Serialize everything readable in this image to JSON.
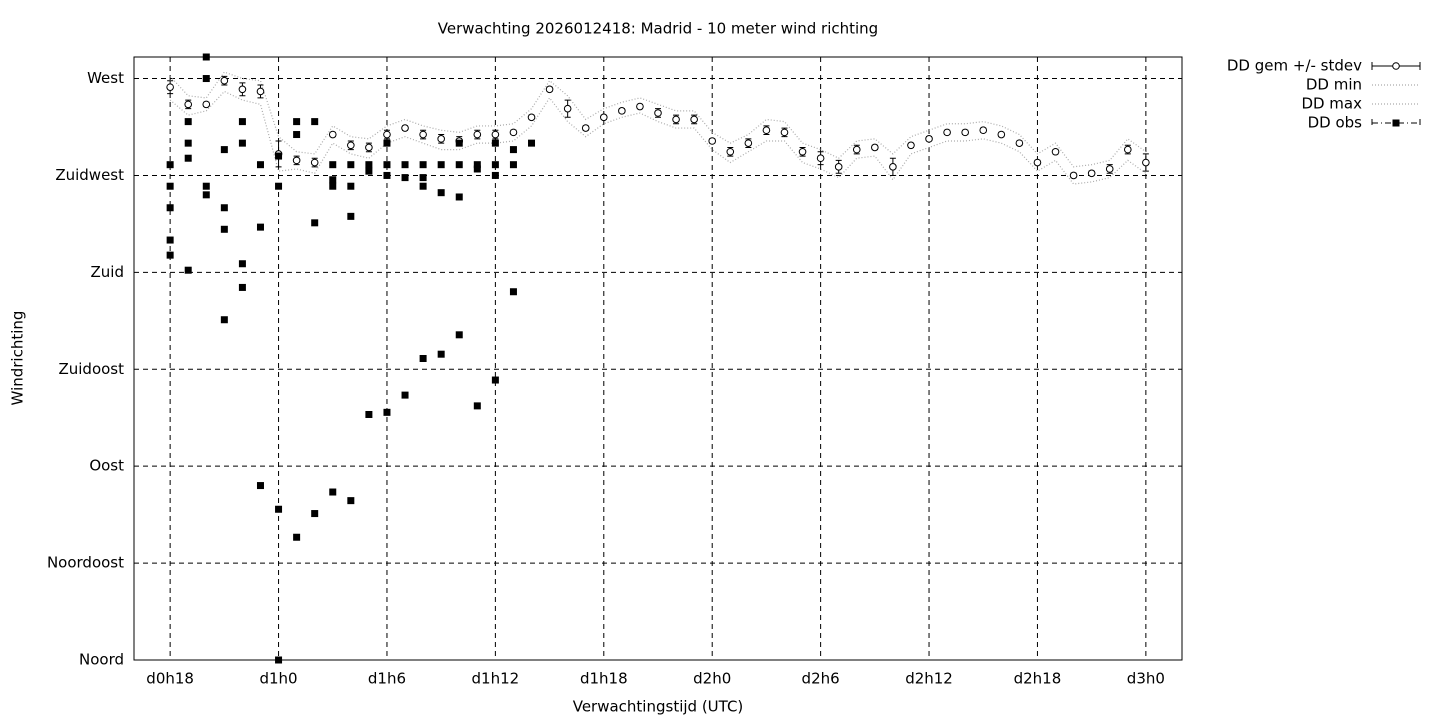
{
  "chart_data": {
    "type": "line",
    "title": "Verwachting 2026012418: Madrid - 10 meter wind richting",
    "xlabel": "Verwachtingstijd (UTC)",
    "ylabel": "Windrichting",
    "xlim": [
      16,
      74
    ],
    "xticks": [
      {
        "value": 18,
        "label": "d0h18"
      },
      {
        "value": 24,
        "label": "d1h0"
      },
      {
        "value": 30,
        "label": "d1h6"
      },
      {
        "value": 36,
        "label": "d1h12"
      },
      {
        "value": 42,
        "label": "d1h18"
      },
      {
        "value": 48,
        "label": "d2h0"
      },
      {
        "value": 54,
        "label": "d2h6"
      },
      {
        "value": 60,
        "label": "d2h12"
      },
      {
        "value": 66,
        "label": "d2h18"
      },
      {
        "value": 72,
        "label": "d3h0"
      }
    ],
    "ylim": [
      0,
      280
    ],
    "yticks": [
      {
        "value": 0,
        "label": "Noord"
      },
      {
        "value": 45,
        "label": "Noordoost"
      },
      {
        "value": 90,
        "label": "Oost"
      },
      {
        "value": 135,
        "label": "Zuidoost"
      },
      {
        "value": 180,
        "label": "Zuid"
      },
      {
        "value": 225,
        "label": "Zuidwest"
      },
      {
        "value": 270,
        "label": "West"
      }
    ],
    "grid": true,
    "legend": "outside-top-right",
    "x": [
      18,
      19,
      20,
      21,
      22,
      23,
      24,
      25,
      26,
      27,
      28,
      29,
      30,
      31,
      32,
      33,
      34,
      35,
      36,
      37,
      38,
      39,
      40,
      41,
      42,
      43,
      44,
      45,
      46,
      47,
      48,
      49,
      50,
      51,
      52,
      53,
      54,
      55,
      56,
      57,
      58,
      59,
      60,
      61,
      62,
      63,
      64,
      65,
      66,
      67,
      68,
      69,
      70,
      71,
      72
    ],
    "series": [
      {
        "name": "DD gem +/- stdev",
        "color": "#000000",
        "values": [
          266,
          258,
          258,
          269,
          265,
          264,
          235,
          232,
          231,
          244,
          239,
          238,
          244,
          247,
          244,
          242,
          241,
          244,
          244,
          245,
          252,
          265,
          256,
          247,
          252,
          255,
          257,
          254,
          251,
          251,
          241,
          236,
          240,
          246,
          245,
          236,
          233,
          229,
          237,
          238,
          229,
          239,
          242,
          245,
          245,
          246,
          244,
          240,
          231,
          236,
          225,
          226,
          228,
          237,
          231
        ],
        "errors": [
          3,
          2,
          1,
          2,
          3,
          3,
          6,
          2,
          2,
          1,
          2,
          2,
          2,
          1,
          2,
          2,
          2,
          2,
          2,
          1,
          1,
          1,
          4,
          1,
          1,
          1,
          1,
          2,
          2,
          2,
          1,
          2,
          2,
          2,
          2,
          2,
          3,
          3,
          2,
          1,
          4,
          1,
          1,
          1,
          1,
          1,
          1,
          1,
          1,
          1,
          1,
          1,
          2,
          2,
          4
        ]
      },
      {
        "name": "DD min",
        "color": "#aaaaaa",
        "values": [
          260,
          253,
          255,
          264,
          260,
          258,
          227,
          228,
          226,
          240,
          235,
          233,
          240,
          243,
          240,
          237,
          237,
          240,
          240,
          241,
          248,
          261,
          250,
          243,
          249,
          252,
          254,
          250,
          247,
          247,
          237,
          231,
          236,
          241,
          241,
          231,
          228,
          224,
          233,
          234,
          223,
          235,
          238,
          241,
          241,
          242,
          240,
          236,
          227,
          232,
          221,
          222,
          224,
          232,
          226
        ]
      },
      {
        "name": "DD max",
        "color": "#aaaaaa",
        "values": [
          271,
          262,
          261,
          273,
          270,
          269,
          243,
          236,
          235,
          248,
          243,
          242,
          248,
          251,
          248,
          246,
          245,
          248,
          248,
          249,
          256,
          269,
          262,
          251,
          256,
          259,
          261,
          258,
          255,
          255,
          245,
          240,
          244,
          251,
          250,
          240,
          237,
          233,
          241,
          242,
          235,
          243,
          246,
          249,
          249,
          250,
          248,
          244,
          235,
          240,
          229,
          230,
          232,
          242,
          236
        ]
      },
      {
        "name": "DD obs",
        "color": "#000000",
        "x": [
          18,
          18,
          18,
          18,
          18,
          19,
          19,
          19,
          19,
          20,
          20,
          20,
          20,
          21,
          21,
          21,
          21,
          22,
          22,
          22,
          22,
          23,
          23,
          23,
          24,
          24,
          24,
          24,
          25,
          25,
          25,
          26,
          26,
          26,
          27,
          27,
          27,
          27,
          28,
          28,
          28,
          28,
          29,
          29,
          29,
          30,
          30,
          30,
          30,
          31,
          31,
          31,
          32,
          32,
          32,
          32,
          33,
          33,
          33,
          34,
          34,
          34,
          34,
          35,
          35,
          35,
          36,
          36,
          36,
          36,
          37,
          37,
          37,
          38
        ],
        "values": [
          230,
          220,
          210,
          195,
          188,
          250,
          240,
          233,
          181,
          280,
          270,
          220,
          216,
          237,
          210,
          200,
          158,
          250,
          240,
          184,
          173,
          230,
          201,
          81,
          234,
          220,
          70,
          0,
          250,
          244,
          57,
          250,
          203,
          68,
          230,
          223,
          220,
          78,
          230,
          220,
          206,
          74,
          230,
          227,
          114,
          240,
          230,
          225,
          115,
          230,
          224,
          123,
          230,
          224,
          220,
          140,
          230,
          217,
          142,
          240,
          230,
          215,
          151,
          230,
          228,
          118,
          240,
          230,
          225,
          130,
          237,
          230,
          171,
          240
        ]
      }
    ]
  }
}
